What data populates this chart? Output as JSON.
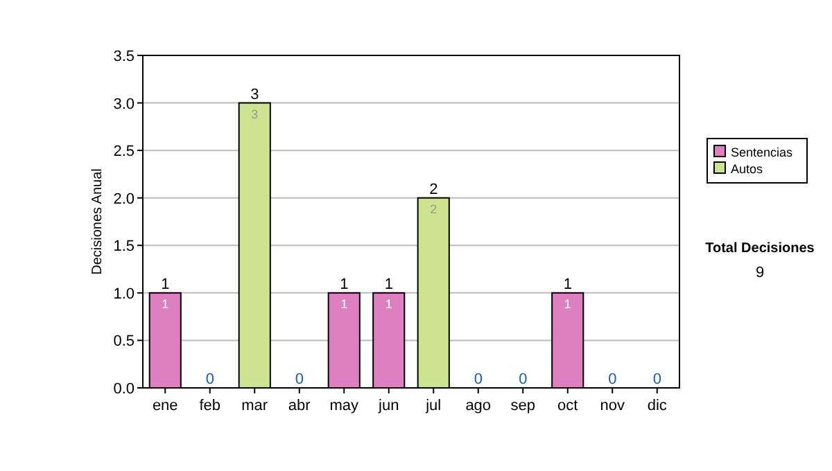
{
  "chart_data": {
    "type": "bar",
    "stacked": true,
    "ylabel": "Decisiones Anual",
    "categories": [
      "ene",
      "feb",
      "mar",
      "abr",
      "may",
      "jun",
      "jul",
      "ago",
      "sep",
      "oct",
      "nov",
      "dic"
    ],
    "series": [
      {
        "name": "Sentencias",
        "color": "#dd7fc0",
        "values": [
          1,
          0,
          0,
          0,
          1,
          1,
          0,
          0,
          0,
          1,
          0,
          0
        ],
        "value_labels": [
          "1",
          null,
          null,
          null,
          "1",
          "1",
          null,
          null,
          null,
          "1",
          null,
          null
        ]
      },
      {
        "name": "Autos",
        "color": "#cce48f",
        "values": [
          0,
          0,
          3,
          0,
          0,
          0,
          2,
          0,
          0,
          0,
          0,
          0
        ],
        "value_labels": [
          null,
          null,
          "3",
          null,
          null,
          null,
          "2",
          null,
          null,
          null,
          null,
          null
        ]
      }
    ],
    "totals": [
      "1",
      "0",
      "3",
      "0",
      "1",
      "1",
      "2",
      "0",
      "0",
      "1",
      "0",
      "0"
    ],
    "ylim": [
      0,
      3.5
    ],
    "yticks": [
      "0.0",
      "0.5",
      "1.0",
      "1.5",
      "2.0",
      "2.5",
      "3.0",
      "3.5"
    ],
    "grid": "y",
    "legend": "right",
    "annotations": [
      "Total Decisiones",
      "9"
    ]
  }
}
